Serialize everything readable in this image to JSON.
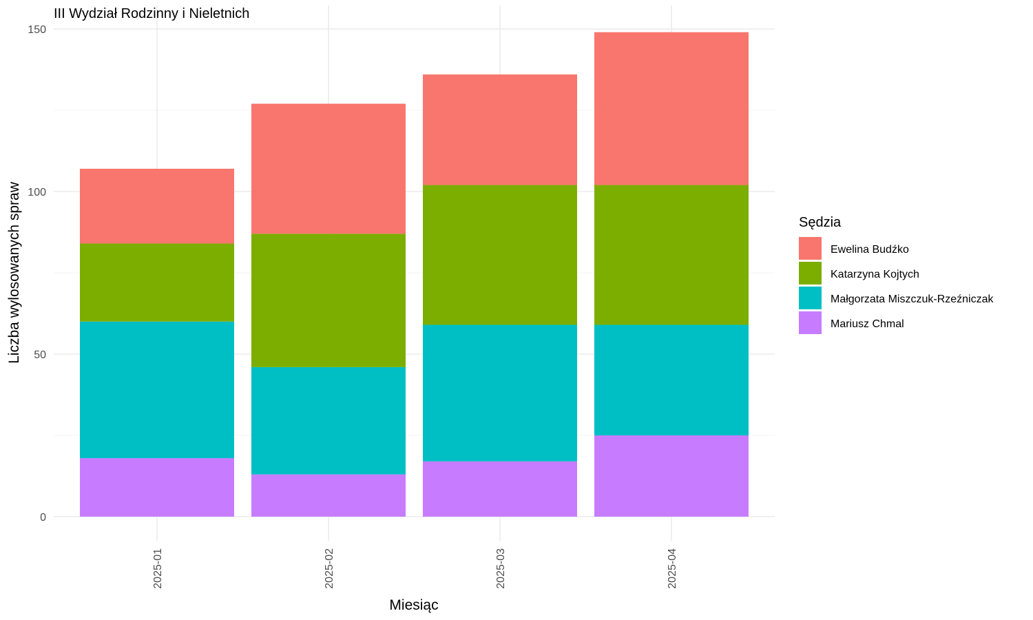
{
  "chart_data": {
    "type": "bar",
    "stacked": true,
    "title": "III Wydział Rodzinny i Nieletnich",
    "xlabel": "Miesiąc",
    "ylabel": "Liczba wylosowanych spraw",
    "categories": [
      "2025-01",
      "2025-02",
      "2025-03",
      "2025-04"
    ],
    "ylim": [
      0,
      155
    ],
    "yticks": [
      0,
      50,
      100,
      150
    ],
    "grid": true,
    "legend": {
      "title": "Sędzia",
      "position": "right"
    },
    "series": [
      {
        "name": "Mariusz Chmal",
        "color": "#C77CFF",
        "values": [
          18,
          13,
          17,
          25
        ]
      },
      {
        "name": "Małgorzata Miszczuk-Rzeźniczak",
        "color": "#00BFC4",
        "values": [
          42,
          33,
          42,
          34
        ]
      },
      {
        "name": "Katarzyna Kojtych",
        "color": "#7CAE00",
        "values": [
          24,
          41,
          43,
          43
        ]
      },
      {
        "name": "Ewelina Budźko",
        "color": "#F8766D",
        "values": [
          23,
          40,
          34,
          47
        ]
      }
    ],
    "legend_order": [
      "Ewelina Budźko",
      "Katarzyna Kojtych",
      "Małgorzata Miszczuk-Rzeźniczak",
      "Mariusz Chmal"
    ]
  }
}
